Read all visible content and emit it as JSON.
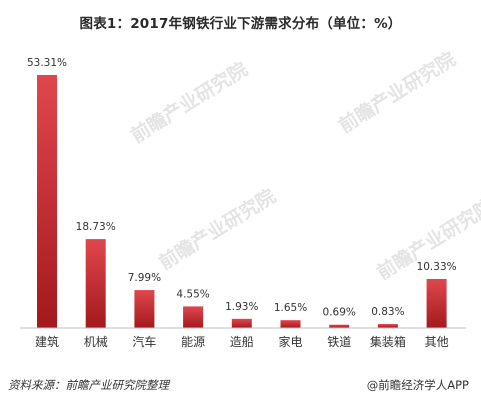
{
  "title": "图表1：2017年钢铁行业下游需求分布（单位：%）",
  "watermark_text": "前瞻产业研究院",
  "footer": {
    "source": "资料来源：前瞻产业研究院整理",
    "brand": "@前瞻经济学人APP"
  },
  "colors": {
    "bar_top": "#e0474d",
    "bar_bottom": "#a3191d",
    "axis": "#bfbfbf"
  },
  "chart_data": {
    "type": "bar",
    "title": "图表1：2017年钢铁行业下游需求分布（单位：%）",
    "categories": [
      "建筑",
      "机械",
      "汽车",
      "能源",
      "造船",
      "家电",
      "铁道",
      "集装箱",
      "其他"
    ],
    "values": [
      53.31,
      18.73,
      7.99,
      4.55,
      1.93,
      1.65,
      0.69,
      0.83,
      10.33
    ],
    "value_labels": [
      "53.31%",
      "18.73%",
      "7.99%",
      "4.55%",
      "1.93%",
      "1.65%",
      "0.69%",
      "0.83%",
      "10.33%"
    ],
    "xlabel": "",
    "ylabel": "",
    "ylim": [
      0,
      53.31
    ],
    "grid": false,
    "legend": "none"
  }
}
